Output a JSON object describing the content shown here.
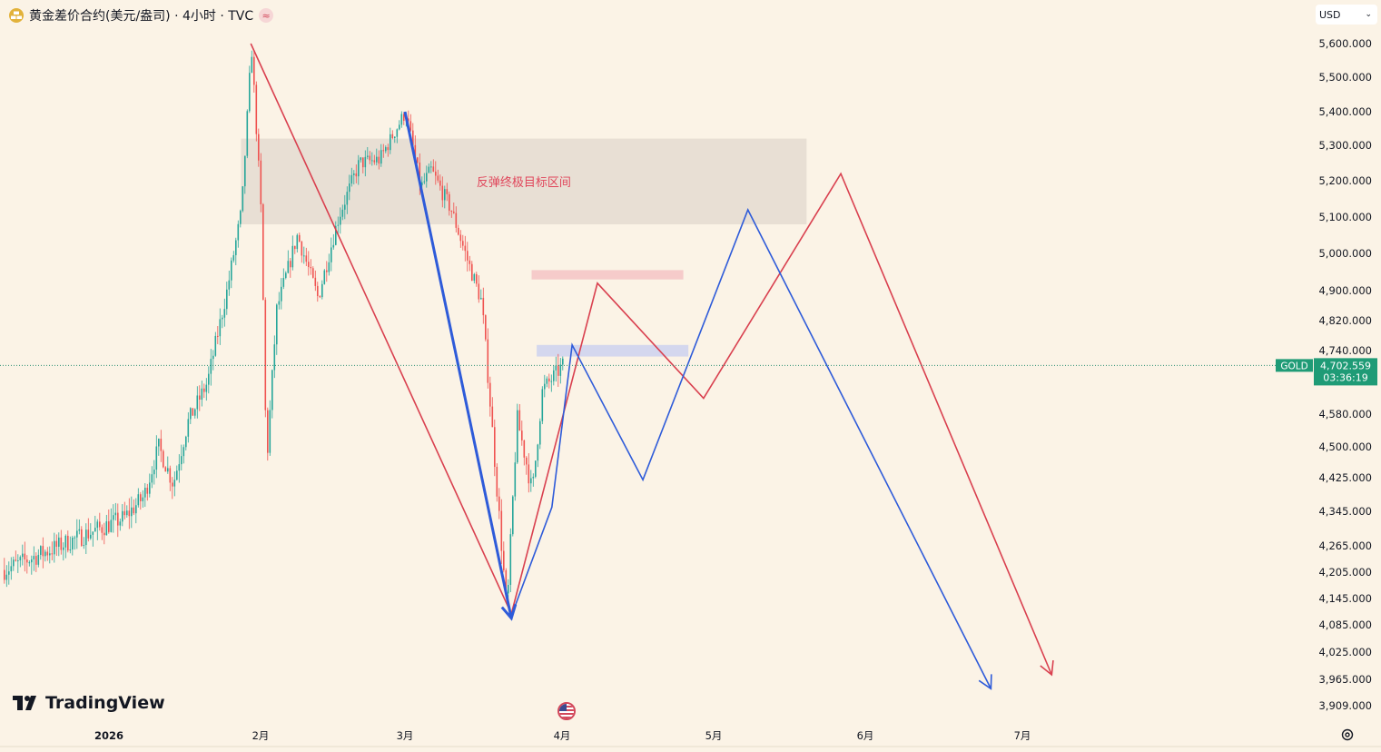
{
  "header": {
    "title": "黄金差价合约(美元/盎司) · 4小时 · TVC",
    "currency": "USD"
  },
  "chart_data": {
    "type": "candlestick",
    "price_axis_labels": [
      "5,600.000",
      "5,500.000",
      "5,400.000",
      "5,300.000",
      "5,200.000",
      "5,100.000",
      "5,000.000",
      "4,900.000",
      "4,820.000",
      "4,740.000",
      "4,580.000",
      "4,500.000",
      "4,425.000",
      "4,345.000",
      "4,265.000",
      "4,205.000",
      "4,145.000",
      "4,085.000",
      "4,025.000",
      "3,965.000",
      "3,909.000"
    ],
    "time_axis_labels": [
      "2026",
      "2月",
      "3月",
      "4月",
      "5月",
      "6月",
      "7月"
    ],
    "last_price": {
      "symbol": "GOLD",
      "price": "4,702.559",
      "countdown": "03:36:19",
      "value": 4702.559
    },
    "price_path": [
      [
        "2026-01-01",
        4210
      ],
      [
        "2026-01-04",
        4330
      ],
      [
        "2026-01-08",
        4380
      ],
      [
        "2026-01-11",
        4500
      ],
      [
        "2026-01-14",
        4410
      ],
      [
        "2026-01-17",
        4560
      ],
      [
        "2026-01-21",
        4660
      ],
      [
        "2026-01-25",
        4900
      ],
      [
        "2026-01-28",
        5120
      ],
      [
        "2026-01-30",
        5590
      ],
      [
        "2026-02-01",
        5100
      ],
      [
        "2026-02-02",
        4450
      ],
      [
        "2026-02-04",
        4850
      ],
      [
        "2026-02-08",
        5050
      ],
      [
        "2026-02-12",
        4880
      ],
      [
        "2026-02-16",
        5100
      ],
      [
        "2026-02-20",
        5250
      ],
      [
        "2026-02-24",
        5260
      ],
      [
        "2026-03-01",
        5400
      ],
      [
        "2026-03-04",
        5180
      ],
      [
        "2026-03-06",
        5230
      ],
      [
        "2026-03-10",
        5120
      ],
      [
        "2026-03-13",
        4990
      ],
      [
        "2026-03-16",
        4870
      ],
      [
        "2026-03-19",
        4400
      ],
      [
        "2026-03-21",
        4110
      ],
      [
        "2026-03-23",
        4570
      ],
      [
        "2026-03-26",
        4390
      ],
      [
        "2026-03-28",
        4640
      ],
      [
        "2026-04-01",
        4702
      ]
    ],
    "zones": [
      {
        "label": "反弹终极目标区间",
        "from": 5080,
        "to": 5320,
        "start": "2026-01-28",
        "end": "2026-05-20",
        "color": "#e6ddd2"
      },
      {
        "label": "",
        "from": 4930,
        "to": 4955,
        "start": "2026-03-26",
        "end": "2026-04-25",
        "color": "#f5c6c6"
      },
      {
        "label": "",
        "from": 4725,
        "to": 4755,
        "start": "2026-03-27",
        "end": "2026-04-26",
        "color": "#cfd4ee"
      }
    ],
    "projection_red": [
      [
        "2026-01-30",
        5600
      ],
      [
        "2026-03-22",
        4110
      ],
      [
        "2026-04-08",
        4920
      ],
      [
        "2026-04-29",
        4620
      ],
      [
        "2026-05-27",
        5220
      ],
      [
        "2026-07-07",
        3975
      ]
    ],
    "projection_blue_history": [
      [
        "2026-03-01",
        5400
      ],
      [
        "2026-03-22",
        4100
      ]
    ],
    "projection_blue": [
      [
        "2026-03-22",
        4105
      ],
      [
        "2026-03-30",
        4355
      ],
      [
        "2026-04-03",
        4755
      ],
      [
        "2026-04-17",
        4420
      ],
      [
        "2026-05-08",
        5120
      ],
      [
        "2026-06-25",
        3945
      ]
    ],
    "colors": {
      "red": "#d9404f",
      "blue": "#2e5bd9",
      "up": "#26a69a",
      "down": "#ef5350",
      "zone_text": "#e0455a",
      "badge": "#1f9b76"
    }
  },
  "branding": {
    "logo_text": "TradingView"
  },
  "icons": {
    "symbol_logo": "gold-logo-icon",
    "flag": "us-flag-icon",
    "settings": "gear-icon",
    "dropdown": "chevron-down-icon"
  }
}
